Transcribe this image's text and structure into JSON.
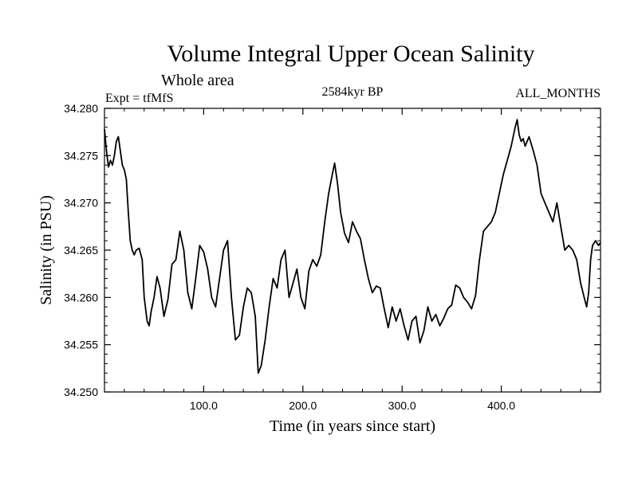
{
  "chart_data": {
    "type": "line",
    "title": "Volume Integral Upper Ocean Salinity",
    "subtitle": "Whole area",
    "experiment_label": "Expt = tfMfS",
    "period_label": "2584kyr BP",
    "months_label": "ALL_MONTHS",
    "xlabel": "Time (in years since start)",
    "ylabel": "Salinity (in PSU)",
    "xlim": [
      0,
      500
    ],
    "ylim": [
      34.25,
      34.28
    ],
    "x_ticks": [
      100,
      200,
      300,
      400
    ],
    "x_tick_labels": [
      "100.0",
      "200.0",
      "300.0",
      "400.0"
    ],
    "y_ticks": [
      34.25,
      34.255,
      34.26,
      34.265,
      34.27,
      34.275,
      34.28
    ],
    "y_tick_labels": [
      "34.250",
      "34.255",
      "34.260",
      "34.265",
      "34.270",
      "34.275",
      "34.280"
    ],
    "series": [
      {
        "name": "Salinity",
        "color": "#000000",
        "x": [
          0,
          2,
          4,
          6,
          8,
          10,
          12,
          14,
          16,
          18,
          20,
          22,
          24,
          26,
          28,
          30,
          32,
          35,
          38,
          40,
          43,
          45,
          47,
          50,
          53,
          56,
          60,
          64,
          68,
          72,
          76,
          80,
          84,
          88,
          92,
          96,
          100,
          104,
          108,
          112,
          116,
          120,
          124,
          128,
          132,
          136,
          140,
          144,
          148,
          152,
          155,
          158,
          162,
          166,
          170,
          174,
          178,
          182,
          186,
          190,
          194,
          198,
          202,
          206,
          210,
          214,
          218,
          222,
          226,
          230,
          232,
          235,
          238,
          242,
          246,
          250,
          254,
          258,
          262,
          266,
          270,
          274,
          278,
          282,
          286,
          290,
          294,
          298,
          302,
          306,
          310,
          314,
          318,
          322,
          326,
          330,
          334,
          338,
          342,
          346,
          350,
          354,
          358,
          362,
          366,
          370,
          374,
          378,
          382,
          386,
          390,
          394,
          398,
          402,
          406,
          410,
          414,
          416,
          418,
          420,
          422,
          424,
          428,
          432,
          436,
          440,
          444,
          448,
          452,
          456,
          460,
          464,
          468,
          472,
          476,
          480,
          484,
          486,
          488,
          490,
          492,
          495,
          498,
          500
        ],
        "values": [
          34.2778,
          34.2755,
          34.2738,
          34.2745,
          34.274,
          34.275,
          34.2765,
          34.277,
          34.2755,
          34.274,
          34.2735,
          34.2725,
          34.269,
          34.266,
          34.265,
          34.2645,
          34.265,
          34.2652,
          34.264,
          34.26,
          34.2575,
          34.257,
          34.2585,
          34.26,
          34.2622,
          34.261,
          34.258,
          34.2598,
          34.2635,
          34.264,
          34.267,
          34.265,
          34.2605,
          34.2588,
          34.262,
          34.2655,
          34.2648,
          34.263,
          34.26,
          34.259,
          34.262,
          34.265,
          34.266,
          34.26,
          34.2555,
          34.256,
          34.259,
          34.261,
          34.2605,
          34.258,
          34.252,
          34.2528,
          34.2555,
          34.259,
          34.262,
          34.261,
          34.264,
          34.265,
          34.26,
          34.2615,
          34.263,
          34.26,
          34.2588,
          34.2628,
          34.264,
          34.2633,
          34.2645,
          34.268,
          34.271,
          34.2732,
          34.2742,
          34.272,
          34.269,
          34.2668,
          34.2658,
          34.268,
          34.267,
          34.2662,
          34.264,
          34.262,
          34.2605,
          34.2612,
          34.261,
          34.2588,
          34.2568,
          34.259,
          34.2575,
          34.2588,
          34.257,
          34.2555,
          34.2575,
          34.258,
          34.2552,
          34.2565,
          34.259,
          34.2575,
          34.2582,
          34.257,
          34.2578,
          34.2588,
          34.2592,
          34.2613,
          34.261,
          34.26,
          34.2595,
          34.2588,
          34.2602,
          34.264,
          34.267,
          34.2675,
          34.268,
          34.269,
          34.271,
          34.273,
          34.2745,
          34.276,
          34.278,
          34.2788,
          34.2772,
          34.2765,
          34.2768,
          34.276,
          34.277,
          34.2756,
          34.274,
          34.271,
          34.27,
          34.269,
          34.268,
          34.27,
          34.2675,
          34.265,
          34.2655,
          34.265,
          34.264,
          34.2615,
          34.2598,
          34.259,
          34.2605,
          34.264,
          34.2655,
          34.266,
          34.2655,
          34.2658
        ]
      }
    ]
  }
}
